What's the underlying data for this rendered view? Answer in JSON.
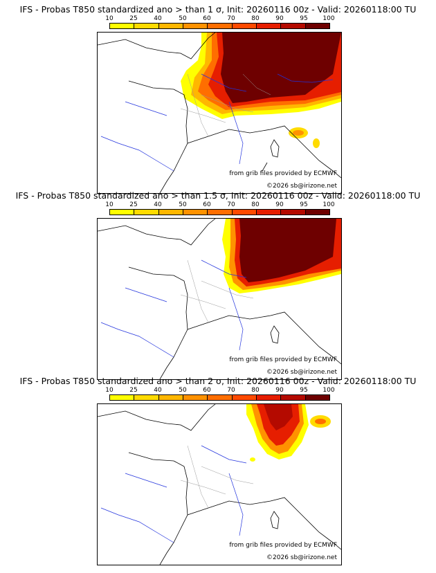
{
  "panels": [
    {
      "title": "IFS - Probas T850  standardized ano > than 1 σ, Init: 20260116 00z - Valid: 20260118:00 TU",
      "source_credit": "from grib files provided by ECMWF",
      "copyright": "©2026 sb@irizone.net"
    },
    {
      "title": "IFS - Probas T850  standardized ano > than 1.5 σ, Init: 20260116 00z - Valid: 20260118:00 TU",
      "source_credit": "from grib files provided by ECMWF",
      "copyright": "©2026 sb@irizone.net"
    },
    {
      "title": "IFS - Probas T850  standardized ano > than 2 σ, Init: 20260116 00z - Valid: 20260118:00 TU",
      "source_credit": "from grib files provided by ECMWF",
      "copyright": "©2026 sb@irizone.net"
    }
  ],
  "colorbar": {
    "labels": [
      "10",
      "25",
      "40",
      "50",
      "60",
      "70",
      "80",
      "90",
      "95",
      "100"
    ],
    "colors": [
      "#ffff00",
      "#ffdb00",
      "#ffb700",
      "#ff9200",
      "#ff6e00",
      "#ff4a00",
      "#e61e00",
      "#b40a00",
      "#6e0000"
    ]
  },
  "colors": {
    "coast": "#000000",
    "rivers": "#2233dd",
    "regions": "#999999",
    "country": "#444444"
  }
}
